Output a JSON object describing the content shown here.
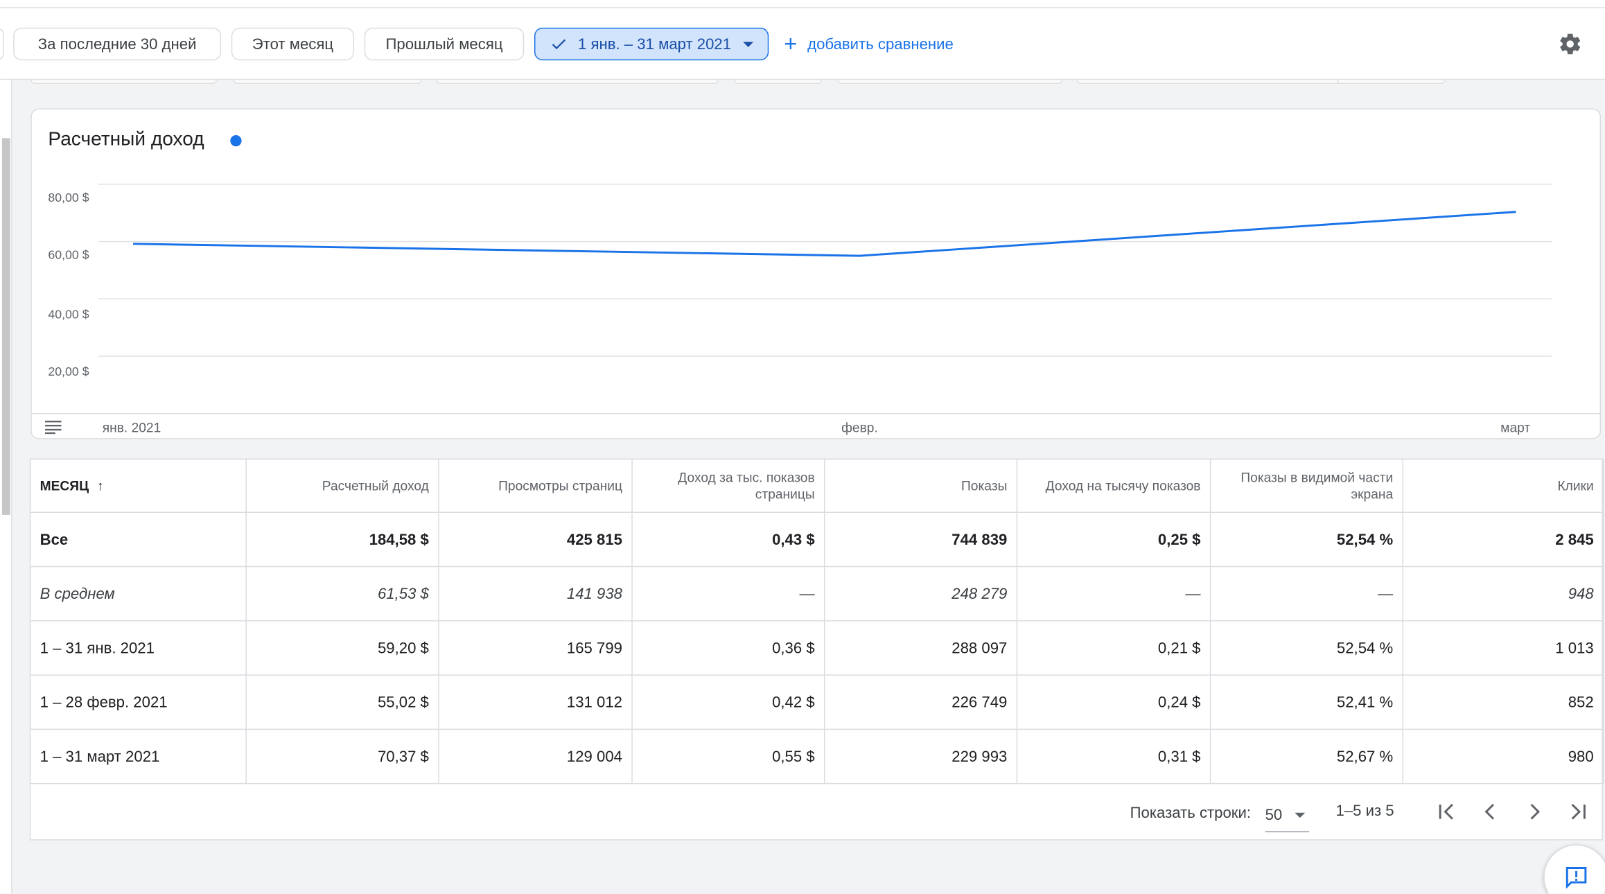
{
  "filters": {
    "chips": [
      "За последние 30 дней",
      "Этот месяц",
      "Прошлый месяц"
    ],
    "selected_range": "1 янв. – 31 март 2021",
    "add_comparison": "добавить сравнение"
  },
  "chart": {
    "title": "Расчетный доход",
    "y_ticks": [
      "80,00 $",
      "60,00 $",
      "40,00 $",
      "20,00 $"
    ],
    "x_ticks": [
      "янв. 2021",
      "февр.",
      "март"
    ],
    "series_color": "#1a73e8"
  },
  "chart_data": {
    "type": "line",
    "title": "Расчетный доход",
    "categories": [
      "янв. 2021",
      "февр.",
      "март"
    ],
    "series": [
      {
        "name": "Расчетный доход",
        "values": [
          59.2,
          55.02,
          70.37
        ]
      }
    ],
    "ylim": [
      0,
      80
    ],
    "grid": true
  },
  "table": {
    "headers": [
      "МЕСЯЦ",
      "Расчетный доход",
      "Просмотры страниц",
      "Доход за тыс. показов страницы",
      "Показы",
      "Доход на тысячу показов",
      "Показы в видимой части экрана",
      "Клики"
    ],
    "sort_arrow": "↑",
    "rows": [
      [
        "Все",
        "184,58 $",
        "425 815",
        "0,43 $",
        "744 839",
        "0,25 $",
        "52,54 %",
        "2 845"
      ],
      [
        "В среднем",
        "61,53 $",
        "141 938",
        "—",
        "248 279",
        "—",
        "—",
        "948"
      ],
      [
        "1 – 31 янв. 2021",
        "59,20 $",
        "165 799",
        "0,36 $",
        "288 097",
        "0,21 $",
        "52,54 %",
        "1 013"
      ],
      [
        "1 – 28 февр. 2021",
        "55,02 $",
        "131 012",
        "0,42 $",
        "226 749",
        "0,24 $",
        "52,41 %",
        "852"
      ],
      [
        "1 – 31 март 2021",
        "70,37 $",
        "129 004",
        "0,55 $",
        "229 993",
        "0,31 $",
        "52,67 %",
        "980"
      ]
    ]
  },
  "pagination": {
    "rows_label": "Показать строки:",
    "rows_value": "50",
    "range": "1–5 из 5"
  },
  "icons": [
    "check-icon",
    "dropdown-caret-icon",
    "plus-icon",
    "gear-icon",
    "menu-lines-icon",
    "first-page-icon",
    "prev-page-icon",
    "next-page-icon",
    "last-page-icon",
    "feedback-icon"
  ]
}
